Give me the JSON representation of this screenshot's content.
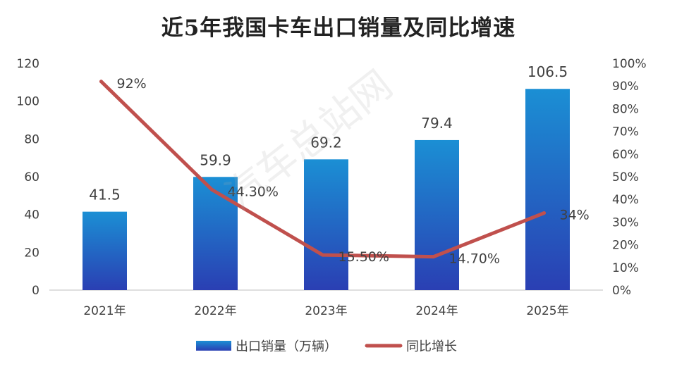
{
  "chart_data": {
    "type": "bar",
    "title": "近5年我国卡车出口销量及同比增速",
    "categories": [
      "2021年",
      "2022年",
      "2023年",
      "2024年",
      "2025年"
    ],
    "series": [
      {
        "name": "出口销量（万辆）",
        "type": "bar",
        "axis": "left",
        "values": [
          41.5,
          59.9,
          69.2,
          79.4,
          106.5
        ],
        "labels": [
          "41.5",
          "59.9",
          "69.2",
          "79.4",
          "106.5"
        ]
      },
      {
        "name": "同比增长",
        "type": "line",
        "axis": "right",
        "values": [
          92,
          44.3,
          15.5,
          14.7,
          34
        ],
        "labels": [
          "92%",
          "44.30%",
          "15.50%",
          "14.70%",
          "34%"
        ]
      }
    ],
    "y_left": {
      "min": 0,
      "max": 120,
      "ticks": [
        "0",
        "20",
        "40",
        "60",
        "80",
        "100",
        "120"
      ]
    },
    "y_right": {
      "min": 0,
      "max": 100,
      "ticks": [
        "0%",
        "10%",
        "20%",
        "30%",
        "40%",
        "50%",
        "60%",
        "70%",
        "80%",
        "90%",
        "100%"
      ]
    },
    "grid": false,
    "legend_position": "bottom",
    "colors": {
      "bar_top": "#1b8fd4",
      "bar_bottom": "#2a3fb3",
      "line": "#c0504d"
    }
  },
  "watermark": "汽车总站网"
}
